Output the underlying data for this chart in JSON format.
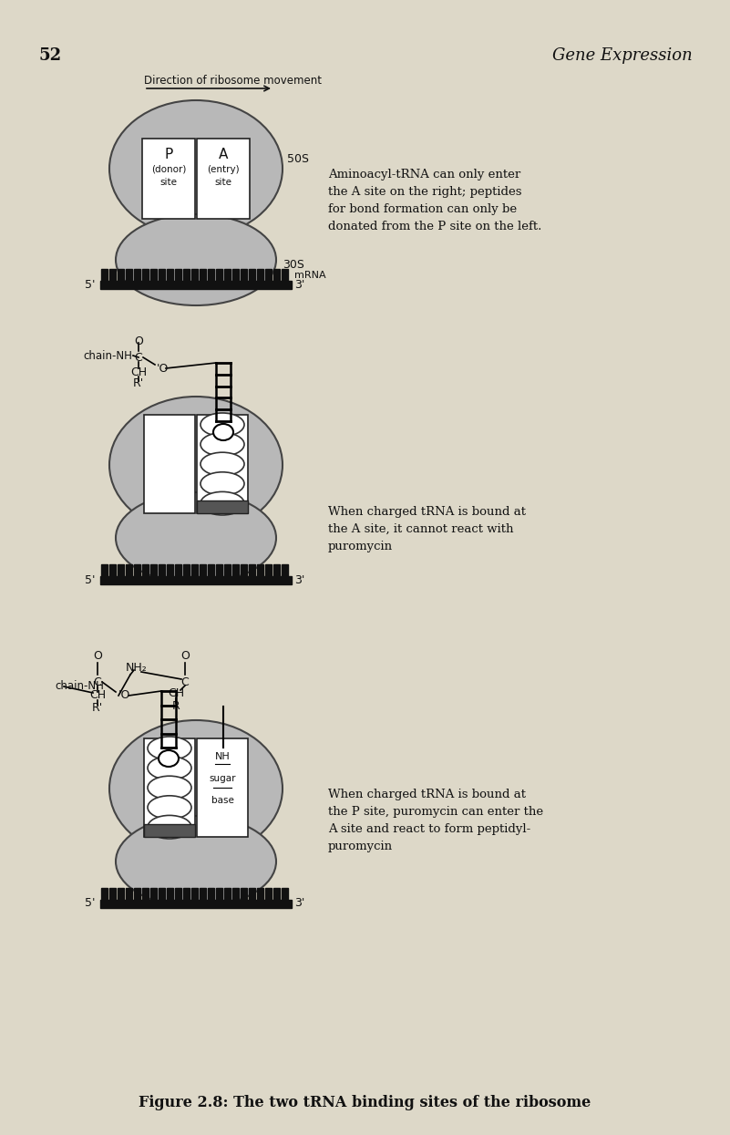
{
  "bg_color": "#ddd8c8",
  "page_num": "52",
  "header_title": "Gene Expression",
  "direction_label": "Direction of ribosome movement",
  "fig1_text": "Aminoacyl-tRNA can only enter\nthe A site on the right; peptides\nfor bond formation can only be\ndonated from the P site on the left.",
  "fig2_text": "When charged tRNA is bound at\nthe A site, it cannot react with\npuromycin",
  "fig3_text": "When charged tRNA is bound at\nthe P site, puromycin can enter the\nA site and react to form peptidyl-\npuromycin",
  "figure_caption": "Figure 2.8: The two tRNA binding sites of the ribosome",
  "ribosome_fill": "#b8b8b8",
  "ribosome_edge": "#444444",
  "mrna_black": "#111111",
  "box_fill": "#ffffff",
  "box_edge": "#222222"
}
